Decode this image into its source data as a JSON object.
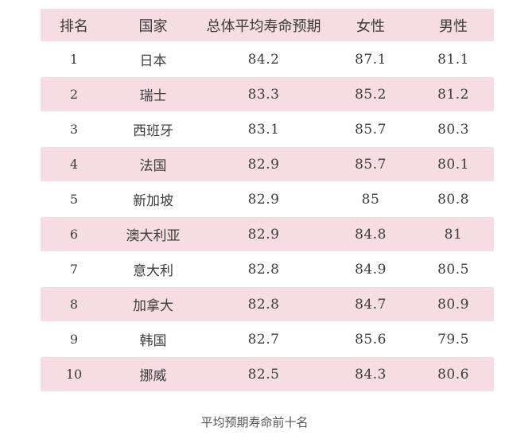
{
  "table": {
    "headers": {
      "rank": "排名",
      "country": "国家",
      "total": "总体平均寿命预期",
      "female": "女性",
      "male": "男性"
    },
    "rows": [
      {
        "rank": "1",
        "country": "日本",
        "total": "84.2",
        "female": "87.1",
        "male": "81.1"
      },
      {
        "rank": "2",
        "country": "瑞士",
        "total": "83.3",
        "female": "85.2",
        "male": "81.2"
      },
      {
        "rank": "3",
        "country": "西班牙",
        "total": "83.1",
        "female": "85.7",
        "male": "80.3"
      },
      {
        "rank": "4",
        "country": "法国",
        "total": "82.9",
        "female": "85.7",
        "male": "80.1"
      },
      {
        "rank": "5",
        "country": "新加坡",
        "total": "82.9",
        "female": "85",
        "male": "80.8"
      },
      {
        "rank": "6",
        "country": "澳大利亚",
        "total": "82.9",
        "female": "84.8",
        "male": "81"
      },
      {
        "rank": "7",
        "country": "意大利",
        "total": "82.8",
        "female": "84.9",
        "male": "80.5"
      },
      {
        "rank": "8",
        "country": "加拿大",
        "total": "82.8",
        "female": "84.7",
        "male": "80.9"
      },
      {
        "rank": "9",
        "country": "韩国",
        "total": "82.7",
        "female": "85.6",
        "male": "79.5"
      },
      {
        "rank": "10",
        "country": "挪威",
        "total": "82.5",
        "female": "84.3",
        "male": "80.6"
      }
    ]
  },
  "caption": "平均预期寿命前十名",
  "colors": {
    "stripe": "#f6dde3",
    "background": "#ffffff",
    "text": "#3a3a3a"
  }
}
